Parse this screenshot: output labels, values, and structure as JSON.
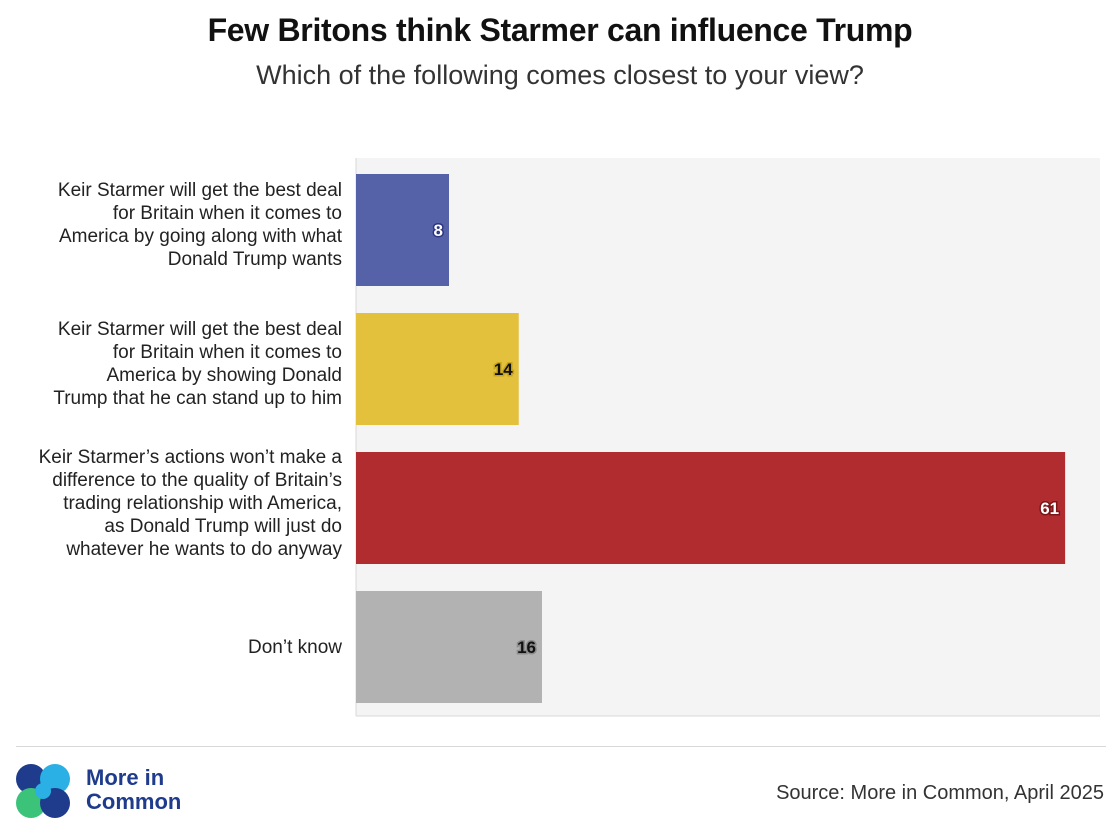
{
  "chart_data": {
    "type": "bar",
    "orientation": "horizontal",
    "title": "Few Britons think Starmer can influence Trump",
    "subtitle": "Which of the following comes closest to your view?",
    "categories": [
      "Keir Starmer will get the best deal for Britain when it comes to America by going along with what Donald Trump wants",
      "Keir Starmer will get the best deal for Britain when it comes to America by showing Donald Trump that he can stand up to him",
      "Keir Starmer’s actions won’t make a difference to the quality of Britain’s trading relationship with America, as Donald Trump will just do whatever he wants to do anyway",
      "Don’t know"
    ],
    "values": [
      8,
      14,
      61,
      16
    ],
    "colors": [
      "#5562a8",
      "#e3c13c",
      "#b12c2f",
      "#b2b2b2"
    ],
    "label_text_colors": [
      "#ffffff",
      "#111111",
      "#ffffff",
      "#111111"
    ],
    "label_halo_colors": [
      "#2b3580",
      "#c9a51e",
      "#7a1518",
      "#8c8c8c"
    ],
    "xlim": [
      0,
      64
    ],
    "xlabel": "",
    "ylabel": "",
    "grid": false,
    "background": "#f4f4f4"
  },
  "labels": {
    "cat0_lines": [
      "Keir Starmer will get the best deal",
      "for Britain when it comes to",
      "America by going along with what",
      "Donald Trump wants"
    ],
    "cat1_lines": [
      "Keir Starmer will get the best deal",
      "for Britain when it comes to",
      "America by showing Donald",
      "Trump that he can stand up to him"
    ],
    "cat2_lines": [
      "Keir Starmer’s actions won’t make a",
      "difference to the quality of Britain’s",
      "trading relationship with America,",
      "as Donald Trump will just do",
      "whatever he wants to do anyway"
    ],
    "cat3_lines": [
      "Don’t know"
    ]
  },
  "footer": {
    "logo_line1": "More in",
    "logo_line2": "Common",
    "logo_colors": [
      "#1f3b8c",
      "#2ab0e4",
      "#3cc37a",
      "#1f3b8c"
    ],
    "source": "Source: More in Common, April 2025"
  }
}
